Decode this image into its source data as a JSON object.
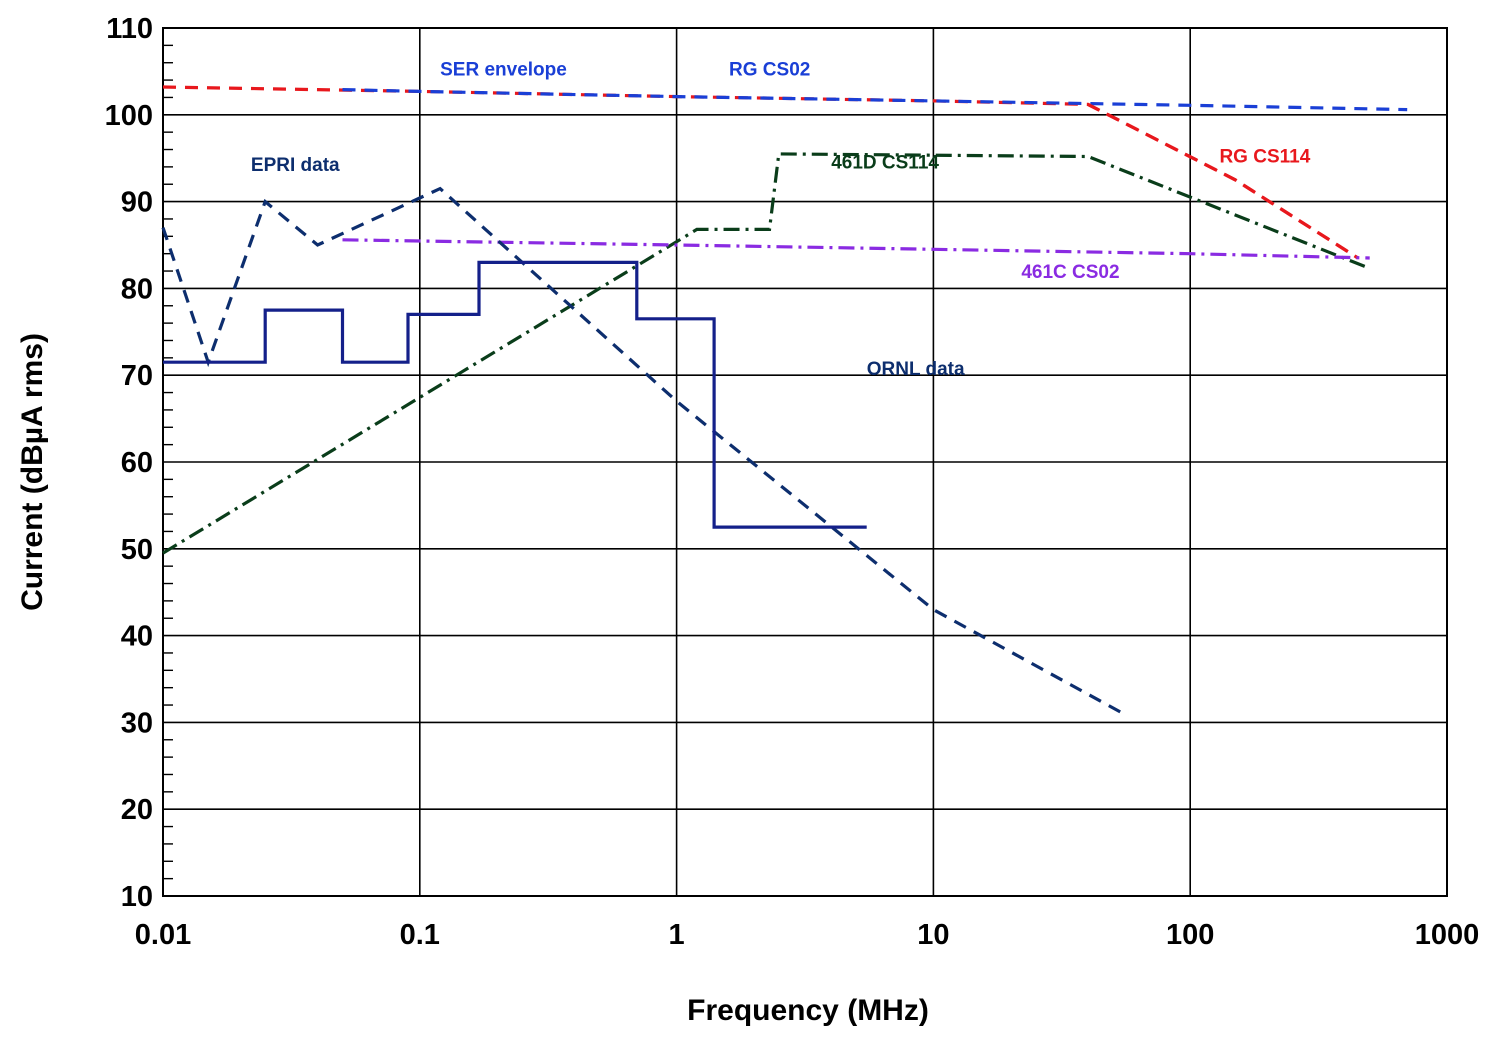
{
  "chart_data": {
    "type": "line",
    "xlabel": "Frequency (MHz)",
    "ylabel": "Current (dBµA rms)",
    "xscale": "log",
    "xlim": [
      0.01,
      1000
    ],
    "ylim": [
      10,
      110
    ],
    "grid": true,
    "x_ticks": [
      "0.01",
      "0.1",
      "1",
      "10",
      "100",
      "1000"
    ],
    "y_ticks": [
      "10",
      "20",
      "30",
      "40",
      "50",
      "60",
      "70",
      "80",
      "90",
      "100",
      "110"
    ],
    "series": [
      {
        "name": "SER envelope",
        "color": "#e8181d",
        "style": "dashed",
        "x": [
          0.01,
          0.1,
          1,
          10,
          40,
          150,
          450
        ],
        "y": [
          103.2,
          102.7,
          102.1,
          101.6,
          101.2,
          92.5,
          83.5
        ]
      },
      {
        "name": "RG CS02",
        "color": "#1a3fd6",
        "style": "dashed",
        "x": [
          0.05,
          0.1,
          1,
          10,
          100,
          700
        ],
        "y": [
          102.9,
          102.7,
          102.1,
          101.6,
          101.1,
          100.6
        ]
      },
      {
        "name": "RG CS114",
        "color": "#e8181d",
        "style": "dashed",
        "x": [
          40,
          150,
          450
        ],
        "y": [
          101.2,
          92.5,
          83.5
        ]
      },
      {
        "name": "461D CS114",
        "color": "#0a3d1a",
        "style": "dash-dot",
        "x": [
          0.01,
          1.2,
          2.3,
          2.5,
          40,
          500
        ],
        "y": [
          49.5,
          86.8,
          86.8,
          95.5,
          95.2,
          82.3
        ]
      },
      {
        "name": "461C CS02",
        "color": "#8a2be2",
        "style": "dash-dot",
        "x": [
          0.05,
          1,
          10,
          100,
          500
        ],
        "y": [
          85.6,
          85.0,
          84.5,
          84.0,
          83.5
        ]
      },
      {
        "name": "EPRI data",
        "color": "#0d2e6e",
        "style": "dashed",
        "x": [
          0.01,
          0.015,
          0.025,
          0.04,
          0.12,
          1,
          10,
          55
        ],
        "y": [
          87,
          71.5,
          90,
          85,
          91.5,
          67,
          43,
          31
        ]
      },
      {
        "name": "ORNL data",
        "color": "#14208a",
        "style": "solid",
        "x": [
          0.01,
          0.025,
          0.025,
          0.05,
          0.05,
          0.09,
          0.09,
          0.17,
          0.17,
          0.7,
          0.7,
          1.4,
          1.4,
          5.5
        ],
        "y": [
          71.5,
          71.5,
          77.5,
          77.5,
          71.5,
          71.5,
          77,
          77,
          83,
          83,
          76.5,
          76.5,
          52.5,
          52.5
        ]
      }
    ],
    "annotations": [
      {
        "text": "SER envelope",
        "color": "#1a3fd6",
        "x": 0.12,
        "y": 104.5
      },
      {
        "text": "RG CS02",
        "color": "#1a3fd6",
        "x": 1.6,
        "y": 104.5
      },
      {
        "text": "EPRI data",
        "color": "#0d2e6e",
        "x": 0.022,
        "y": 93.5
      },
      {
        "text": "461D CS114",
        "color": "#0a3d1a",
        "x": 4,
        "y": 93.8
      },
      {
        "text": "RG CS114",
        "color": "#e8181d",
        "x": 130,
        "y": 94.5
      },
      {
        "text": "461C CS02",
        "color": "#8a2be2",
        "x": 22,
        "y": 81.2
      },
      {
        "text": "ORNL data",
        "color": "#0d2e6e",
        "x": 5.5,
        "y": 70
      }
    ]
  }
}
